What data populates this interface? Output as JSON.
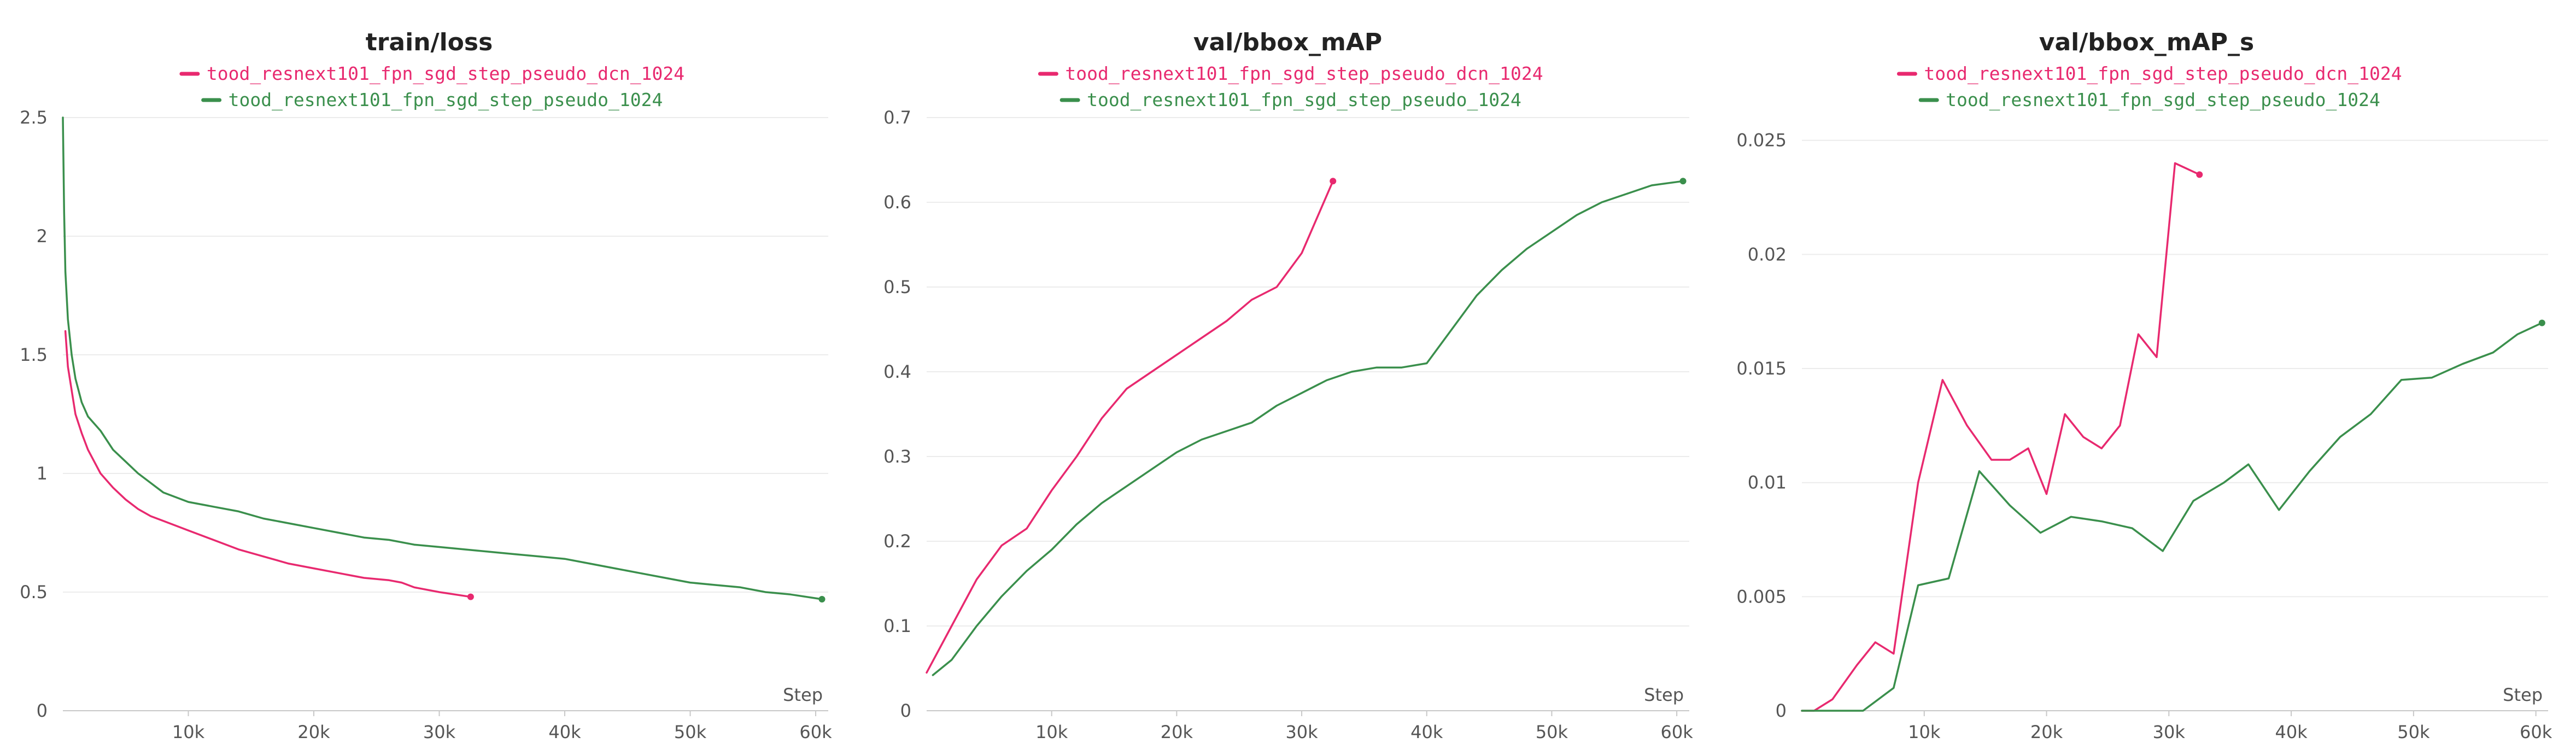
{
  "colors": {
    "pink": "#e8296f",
    "green": "#3a8f4c"
  },
  "chart_data": [
    {
      "type": "line",
      "title": "train/loss",
      "xlabel": "Step",
      "xlim": [
        0,
        61000
      ],
      "ylim": [
        0,
        2.5
      ],
      "xticks": [
        10000,
        20000,
        30000,
        40000,
        50000,
        60000
      ],
      "xtick_labels": [
        "10k",
        "20k",
        "30k",
        "40k",
        "50k",
        "60k"
      ],
      "yticks": [
        0,
        0.5,
        1,
        1.5,
        2,
        2.5
      ],
      "ytick_labels": [
        "0",
        "0.5",
        "1",
        "1.5",
        "2",
        "2.5"
      ],
      "legend_position": "top-center",
      "series": [
        {
          "name": "tood_resnext101_fpn_sgd_step_pseudo_dcn_1024",
          "color": "#e8296f",
          "x": [
            200,
            400,
            700,
            1000,
            1500,
            2000,
            2500,
            3000,
            4000,
            5000,
            6000,
            7000,
            8000,
            9000,
            10000,
            12000,
            14000,
            16000,
            18000,
            20000,
            22000,
            24000,
            26000,
            27000,
            28000,
            30000,
            32500
          ],
          "y": [
            1.6,
            1.45,
            1.35,
            1.25,
            1.17,
            1.1,
            1.05,
            1.0,
            0.94,
            0.89,
            0.85,
            0.82,
            0.8,
            0.78,
            0.76,
            0.72,
            0.68,
            0.65,
            0.62,
            0.6,
            0.58,
            0.56,
            0.55,
            0.54,
            0.52,
            0.5,
            0.48
          ]
        },
        {
          "name": "tood_resnext101_fpn_sgd_step_pseudo_1024",
          "color": "#3a8f4c",
          "x": [
            0,
            100,
            200,
            400,
            700,
            1000,
            1500,
            2000,
            3000,
            4000,
            5000,
            6000,
            7000,
            8000,
            10000,
            12000,
            14000,
            16000,
            18000,
            20000,
            22000,
            24000,
            26000,
            28000,
            30000,
            32000,
            34000,
            36000,
            38000,
            40000,
            42000,
            44000,
            46000,
            48000,
            50000,
            52000,
            54000,
            56000,
            58000,
            60500
          ],
          "y": [
            2.5,
            2.1,
            1.85,
            1.65,
            1.5,
            1.4,
            1.3,
            1.24,
            1.18,
            1.1,
            1.05,
            1.0,
            0.96,
            0.92,
            0.88,
            0.86,
            0.84,
            0.81,
            0.79,
            0.77,
            0.75,
            0.73,
            0.72,
            0.7,
            0.69,
            0.68,
            0.67,
            0.66,
            0.65,
            0.64,
            0.62,
            0.6,
            0.58,
            0.56,
            0.54,
            0.53,
            0.52,
            0.5,
            0.49,
            0.47
          ]
        }
      ]
    },
    {
      "type": "line",
      "title": "val/bbox_mAP",
      "xlabel": "Step",
      "xlim": [
        0,
        61000
      ],
      "ylim": [
        0,
        0.7
      ],
      "xticks": [
        10000,
        20000,
        30000,
        40000,
        50000,
        60000
      ],
      "xtick_labels": [
        "10k",
        "20k",
        "30k",
        "40k",
        "50k",
        "60k"
      ],
      "yticks": [
        0,
        0.1,
        0.2,
        0.3,
        0.4,
        0.5,
        0.6,
        0.7
      ],
      "ytick_labels": [
        "0",
        "0.1",
        "0.2",
        "0.3",
        "0.4",
        "0.5",
        "0.6",
        "0.7"
      ],
      "legend_position": "top-center",
      "series": [
        {
          "name": "tood_resnext101_fpn_sgd_step_pseudo_dcn_1024",
          "color": "#e8296f",
          "x": [
            0,
            2000,
            4000,
            6000,
            8000,
            10000,
            12000,
            14000,
            16000,
            18000,
            20000,
            22000,
            24000,
            26000,
            28000,
            30000,
            32500
          ],
          "y": [
            0.045,
            0.1,
            0.155,
            0.195,
            0.215,
            0.26,
            0.3,
            0.345,
            0.38,
            0.4,
            0.42,
            0.44,
            0.46,
            0.485,
            0.5,
            0.54,
            0.625
          ]
        },
        {
          "name": "tood_resnext101_fpn_sgd_step_pseudo_1024",
          "color": "#3a8f4c",
          "x": [
            500,
            2000,
            4000,
            6000,
            8000,
            10000,
            12000,
            14000,
            16000,
            18000,
            20000,
            22000,
            24000,
            26000,
            28000,
            30000,
            32000,
            34000,
            36000,
            38000,
            40000,
            42000,
            44000,
            46000,
            48000,
            50000,
            52000,
            54000,
            56000,
            58000,
            60500
          ],
          "y": [
            0.042,
            0.06,
            0.1,
            0.135,
            0.165,
            0.19,
            0.22,
            0.245,
            0.265,
            0.285,
            0.305,
            0.32,
            0.33,
            0.34,
            0.36,
            0.375,
            0.39,
            0.4,
            0.405,
            0.405,
            0.41,
            0.45,
            0.49,
            0.52,
            0.545,
            0.565,
            0.585,
            0.6,
            0.61,
            0.62,
            0.625
          ]
        }
      ]
    },
    {
      "type": "line",
      "title": "val/bbox_mAP_s",
      "xlabel": "Step",
      "xlim": [
        0,
        61000
      ],
      "ylim": [
        0,
        0.026
      ],
      "xticks": [
        10000,
        20000,
        30000,
        40000,
        50000,
        60000
      ],
      "xtick_labels": [
        "10k",
        "20k",
        "30k",
        "40k",
        "50k",
        "60k"
      ],
      "yticks": [
        0,
        0.005,
        0.01,
        0.015,
        0.02,
        0.025
      ],
      "ytick_labels": [
        "0",
        "0.005",
        "0.01",
        "0.015",
        "0.02",
        "0.025"
      ],
      "legend_position": "top-center",
      "series": [
        {
          "name": "tood_resnext101_fpn_sgd_step_pseudo_dcn_1024",
          "color": "#e8296f",
          "x": [
            0,
            1000,
            2500,
            4500,
            6000,
            7500,
            9500,
            11500,
            13500,
            15500,
            17000,
            18500,
            20000,
            21500,
            23000,
            24500,
            26000,
            27500,
            29000,
            30500,
            32500
          ],
          "y": [
            0,
            0,
            0.0005,
            0.002,
            0.003,
            0.0025,
            0.01,
            0.0145,
            0.0125,
            0.011,
            0.011,
            0.0115,
            0.0095,
            0.013,
            0.012,
            0.0115,
            0.0125,
            0.0165,
            0.0155,
            0.024,
            0.0235
          ]
        },
        {
          "name": "tood_resnext101_fpn_sgd_step_pseudo_1024",
          "color": "#3a8f4c",
          "x": [
            0,
            3000,
            5000,
            7500,
            9500,
            12000,
            14500,
            17000,
            19500,
            22000,
            24500,
            27000,
            29500,
            32000,
            34500,
            36500,
            39000,
            41500,
            44000,
            46500,
            49000,
            51500,
            54000,
            56500,
            58500,
            60500
          ],
          "y": [
            0,
            0,
            0,
            0.001,
            0.0055,
            0.0058,
            0.0105,
            0.009,
            0.0078,
            0.0085,
            0.0083,
            0.008,
            0.007,
            0.0092,
            0.01,
            0.0108,
            0.0088,
            0.0105,
            0.012,
            0.013,
            0.0145,
            0.0146,
            0.0152,
            0.0157,
            0.0165,
            0.017
          ]
        }
      ]
    }
  ]
}
